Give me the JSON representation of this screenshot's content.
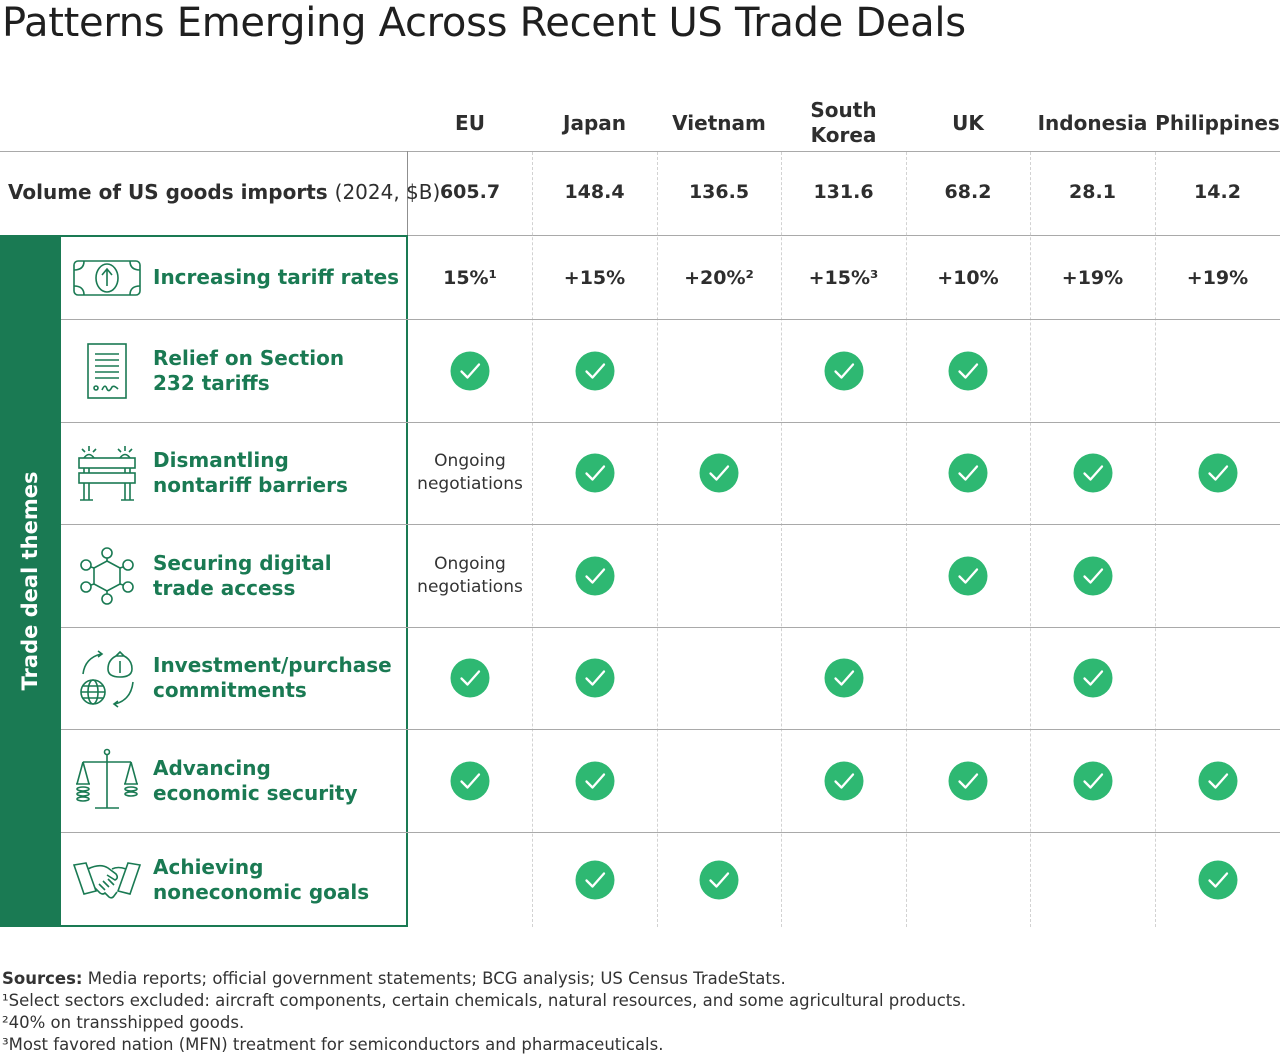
{
  "title": "Patterns Emerging Across Recent US Trade Deals",
  "colors": {
    "theme_green": "#1a7a53",
    "check_green": "#2eb872"
  },
  "chart_data": {
    "type": "table",
    "columns": [
      "EU",
      "Japan",
      "Vietnam",
      "South Korea",
      "UK",
      "Indonesia",
      "Philippines"
    ],
    "volume_row": {
      "label": "Volume of US goods imports",
      "unit": "(2024, $B)",
      "values": [
        "605.7",
        "148.4",
        "136.5",
        "131.6",
        "68.2",
        "28.1",
        "14.2"
      ]
    },
    "themes_group_label": "Trade deal themes",
    "themes": [
      {
        "label": "Increasing tariff rates",
        "icon": "banknote-arrow-icon",
        "cells": [
          "15%¹",
          "+15%",
          "+20%²",
          "+15%³",
          "+10%",
          "+19%",
          "+19%"
        ]
      },
      {
        "label": "Relief on Section\n232 tariffs",
        "icon": "signed-document-icon",
        "cells": [
          true,
          true,
          false,
          true,
          true,
          false,
          false
        ]
      },
      {
        "label": "Dismantling\nnontariff barriers",
        "icon": "road-barrier-icon",
        "cells": [
          "Ongoing\nnegotiations",
          true,
          true,
          false,
          true,
          true,
          true
        ]
      },
      {
        "label": "Securing digital\ntrade access",
        "icon": "network-nodes-icon",
        "cells": [
          "Ongoing\nnegotiations",
          true,
          false,
          false,
          true,
          true,
          false
        ]
      },
      {
        "label": "Investment/purchase\ncommitments",
        "icon": "globe-money-cycle-icon",
        "cells": [
          true,
          true,
          false,
          true,
          false,
          true,
          false
        ]
      },
      {
        "label": "Advancing\neconomic security",
        "icon": "balance-scale-icon",
        "cells": [
          true,
          true,
          false,
          true,
          true,
          true,
          true
        ]
      },
      {
        "label": "Achieving\nnoneconomic goals",
        "icon": "handshake-icon",
        "cells": [
          false,
          true,
          true,
          false,
          false,
          false,
          true
        ]
      }
    ]
  },
  "footnotes": {
    "sources_label": "Sources:",
    "sources_text": " Media reports; official government statements; BCG analysis; US Census TradeStats.",
    "notes": [
      "¹Select sectors excluded: aircraft components, certain chemicals, natural resources, and some agricultural products.",
      "²40% on transshipped goods.",
      "³Most favored nation (MFN) treatment for semiconductors and pharmaceuticals."
    ]
  }
}
